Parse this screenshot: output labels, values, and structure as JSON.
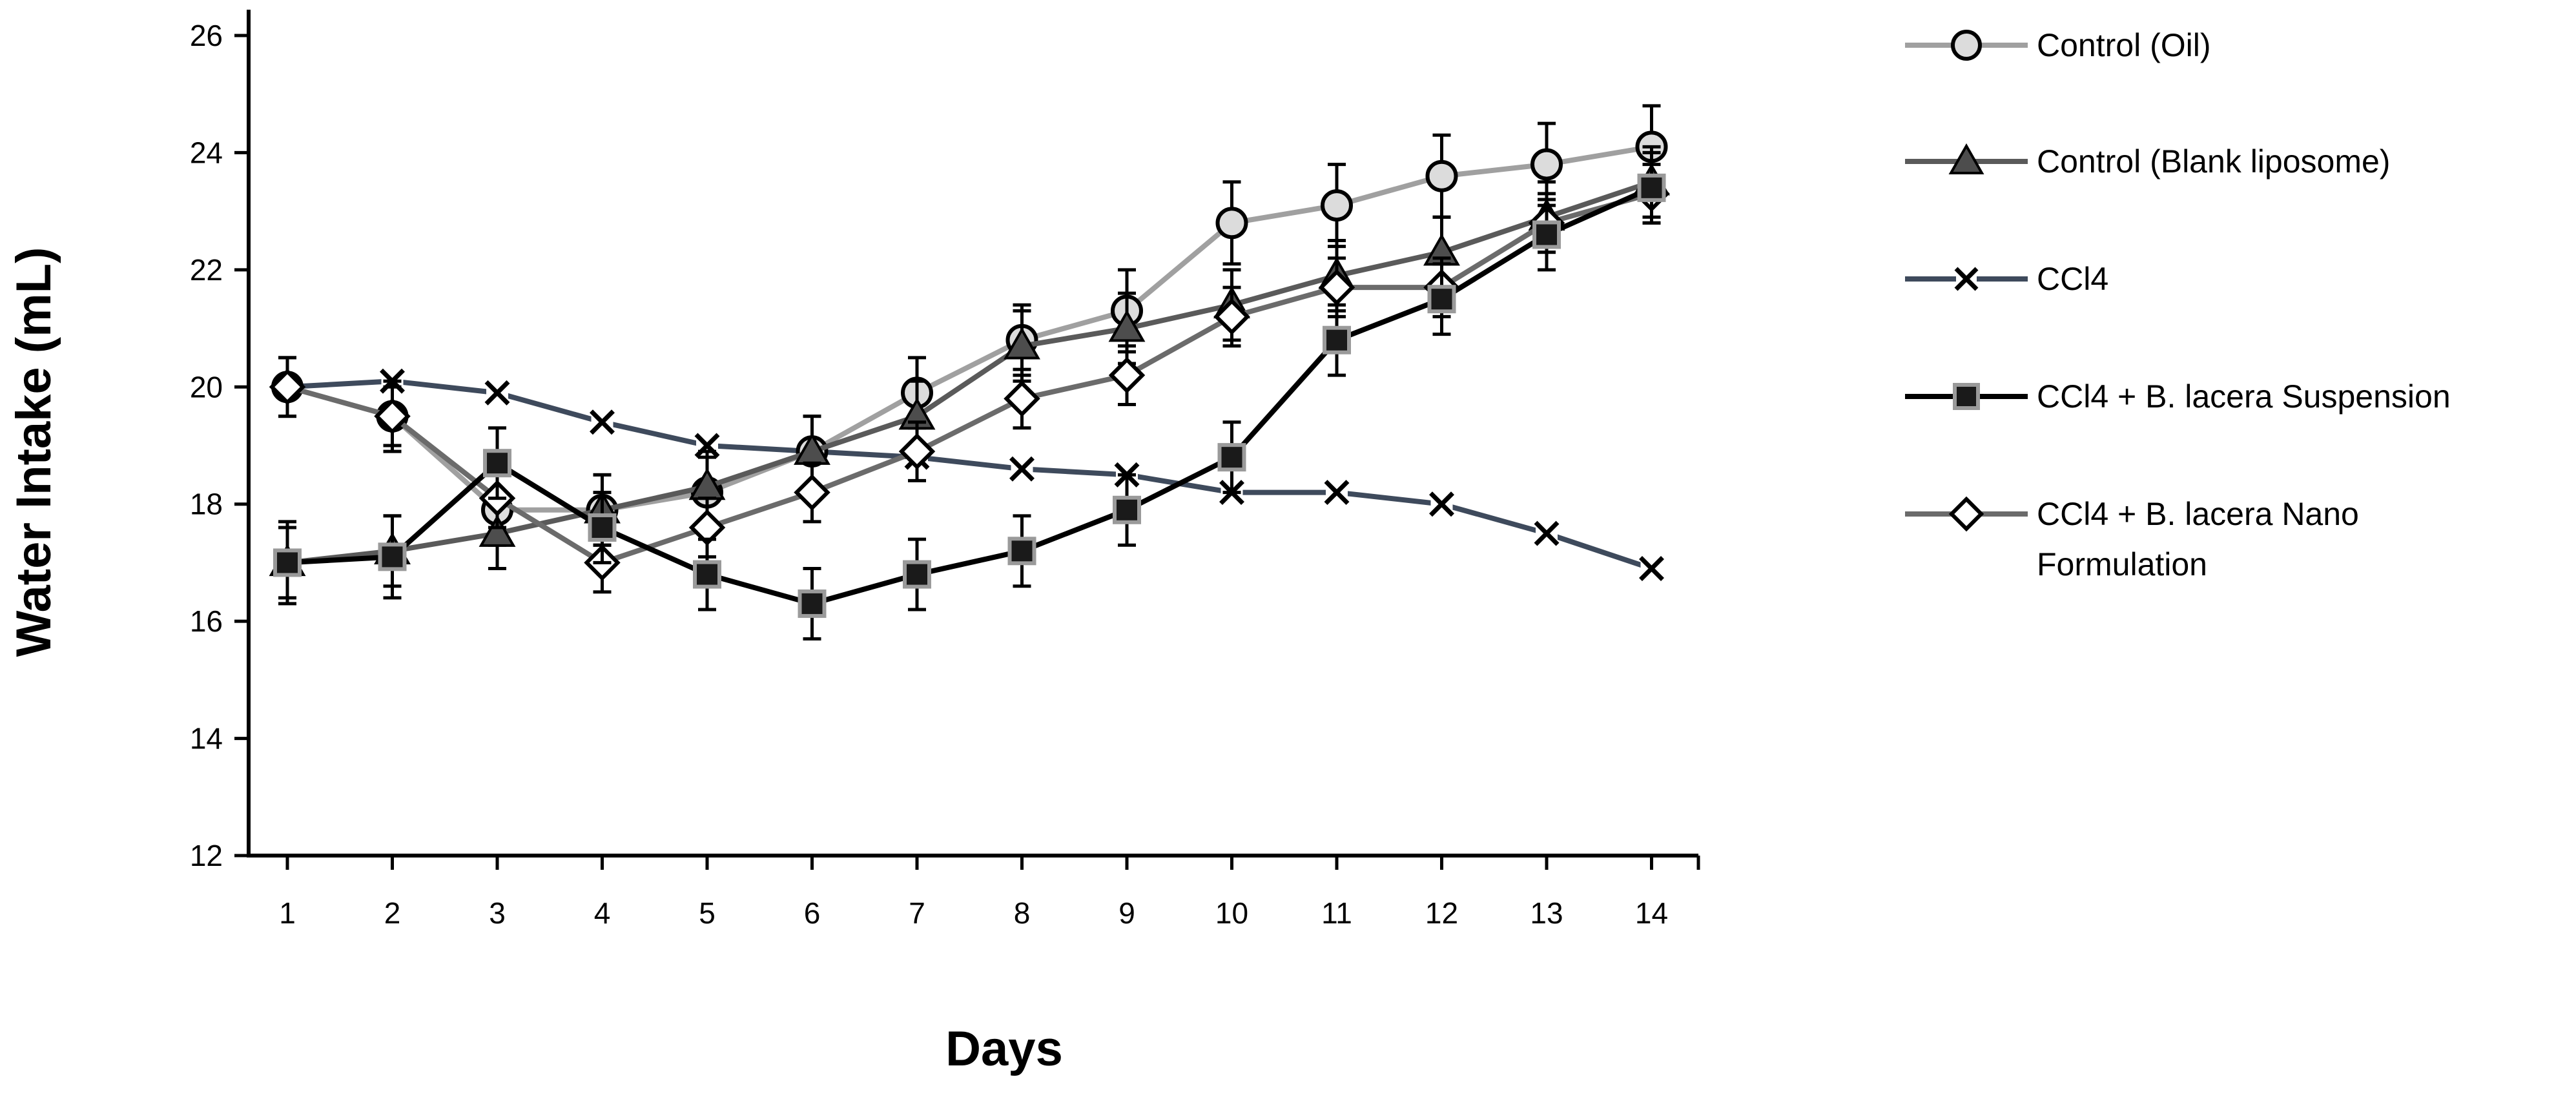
{
  "chart_data": {
    "type": "line",
    "xlabel": "Days",
    "ylabel": "Water Intake (mL)",
    "x": [
      1,
      2,
      3,
      4,
      5,
      6,
      7,
      8,
      9,
      10,
      11,
      12,
      13,
      14
    ],
    "x_tick_labels": [
      "1",
      "2",
      "3",
      "4",
      "5",
      "6",
      "7",
      "8",
      "9",
      "10",
      "11",
      "12",
      "13",
      "14"
    ],
    "ylim": [
      12,
      26
    ],
    "y_ticks": [
      12,
      14,
      16,
      18,
      20,
      22,
      24,
      26
    ],
    "y_tick_labels": [
      "12",
      "14",
      "16",
      "18",
      "20",
      "22",
      "24",
      "26"
    ],
    "grid": false,
    "legend_position": "right",
    "series": [
      {
        "name": "Control (Oil)",
        "values": [
          20.0,
          19.5,
          17.9,
          17.9,
          18.2,
          18.9,
          19.9,
          20.8,
          21.3,
          22.8,
          23.1,
          23.6,
          23.8,
          24.1
        ],
        "error": [
          0.5,
          0.6,
          0.6,
          0.6,
          0.6,
          0.6,
          0.6,
          0.6,
          0.7,
          0.7,
          0.7,
          0.7,
          0.7,
          0.7
        ],
        "marker": "circle",
        "marker_fill": "#dcdcdc",
        "line_color": "#a0a0a0"
      },
      {
        "name": "Control (Blank liposome)",
        "values": [
          17.0,
          17.2,
          17.5,
          17.9,
          18.3,
          18.9,
          19.5,
          20.7,
          21.0,
          21.4,
          21.9,
          22.3,
          22.9,
          23.5
        ],
        "error": [
          0.6,
          0.6,
          0.6,
          0.6,
          0.6,
          0.6,
          0.6,
          0.6,
          0.6,
          0.6,
          0.6,
          0.6,
          0.6,
          0.6
        ],
        "marker": "triangle",
        "marker_fill": "#4d4d4d",
        "line_color": "#5a5a5a"
      },
      {
        "name": "CCl4",
        "values": [
          20.0,
          20.1,
          19.9,
          19.4,
          19.0,
          18.9,
          18.8,
          18.6,
          18.5,
          18.2,
          18.2,
          18.0,
          17.5,
          16.9
        ],
        "error": [
          0.15,
          0.15,
          0.15,
          0.15,
          0.15,
          0.15,
          0.15,
          0.15,
          0.15,
          0.15,
          0.15,
          0.15,
          0.15,
          0.15
        ],
        "marker": "x-box",
        "marker_fill": "#ffffff",
        "line_color": "#3e4a5c"
      },
      {
        "name": "CCl4 + B. lacera Suspension",
        "values": [
          17.0,
          17.1,
          18.7,
          17.6,
          16.8,
          16.3,
          16.8,
          17.2,
          17.9,
          18.8,
          20.8,
          21.5,
          22.6,
          23.4
        ],
        "error": [
          0.7,
          0.7,
          0.6,
          0.6,
          0.6,
          0.6,
          0.6,
          0.6,
          0.6,
          0.6,
          0.6,
          0.6,
          0.6,
          0.6
        ],
        "marker": "square",
        "marker_fill": "#1a1a1a",
        "marker_stroke": "#9a9a9a",
        "line_color": "#000000"
      },
      {
        "name": "CCl4 + B. lacera Nano Formulation",
        "values": [
          20.0,
          19.5,
          18.1,
          17.0,
          17.6,
          18.2,
          18.9,
          19.8,
          20.2,
          21.2,
          21.7,
          21.7,
          22.8,
          23.3
        ],
        "error": [
          0.5,
          0.5,
          0.5,
          0.5,
          0.5,
          0.5,
          0.5,
          0.5,
          0.5,
          0.5,
          0.5,
          0.5,
          0.5,
          0.5
        ],
        "marker": "diamond",
        "marker_fill": "#ffffff",
        "line_color": "#6b6b6b"
      }
    ]
  }
}
